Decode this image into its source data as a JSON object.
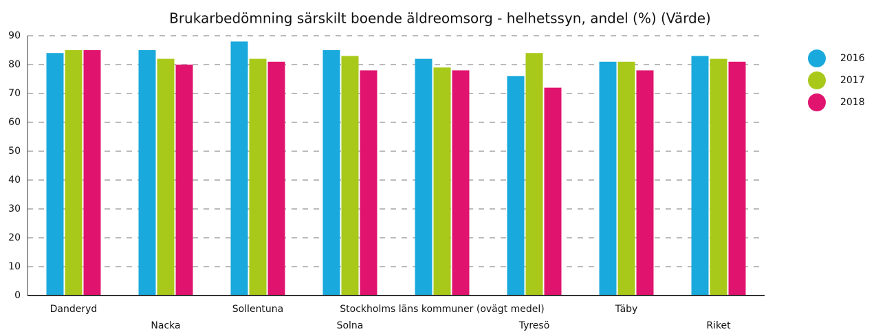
{
  "chart_data": {
    "type": "bar",
    "title": "Brukarbedömning särskilt boende äldreomsorg - helhetssyn, andel (%) (Värde)",
    "categories": [
      "Danderyd",
      "Nacka",
      "Sollentuna",
      "Solna",
      "Stockholms läns kommuner (ovägt medel)",
      "Tyresö",
      "Täby",
      "Riket"
    ],
    "series": [
      {
        "name": "2016",
        "color": "#1aa9dc",
        "values": [
          84,
          85,
          88,
          85,
          82,
          76,
          81,
          83
        ]
      },
      {
        "name": "2017",
        "color": "#a8c91a",
        "values": [
          85,
          82,
          82,
          83,
          79,
          84,
          81,
          82
        ]
      },
      {
        "name": "2018",
        "color": "#e0146e",
        "values": [
          85,
          80,
          81,
          78,
          78,
          72,
          78,
          81
        ]
      }
    ],
    "ylim": [
      0,
      90
    ],
    "yticks": [
      0,
      10,
      20,
      30,
      40,
      50,
      60,
      70,
      80,
      90
    ],
    "grid": true,
    "legend": "right"
  }
}
